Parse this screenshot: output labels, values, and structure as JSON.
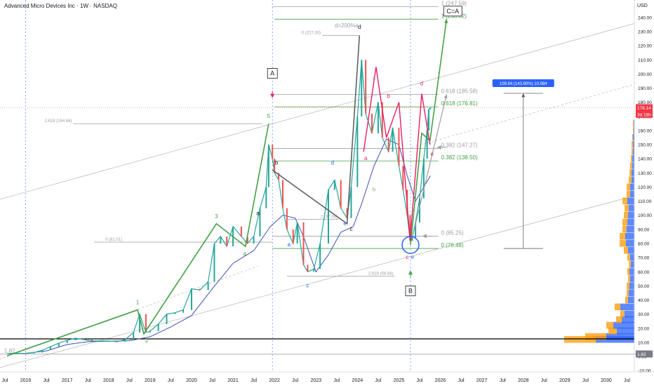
{
  "header": {
    "title": "Advanced Micro Devices Inc · 1W · NASDAQ",
    "currency": "USD"
  },
  "chart_data": {
    "type": "line",
    "title": "Advanced Micro Devices Inc · 1W · NASDAQ",
    "ylim": [
      -10,
      250
    ],
    "y_scale": "linear",
    "grid": false,
    "y_ticks": [
      -10,
      0,
      10,
      20,
      30,
      40,
      50,
      60,
      70,
      80,
      90,
      100,
      110,
      120,
      130,
      140,
      150,
      160,
      170,
      180,
      190,
      200,
      210,
      220,
      230,
      240
    ],
    "y_tick_labels": [
      "-10.00",
      "0.00",
      "10.00",
      "20.00",
      "30.00",
      "40.00",
      "50.00",
      "60.00",
      "70.00",
      "80.00",
      "90.00",
      "100.00",
      "110.00",
      "120.00",
      "130.00",
      "140.00",
      "150.00",
      "160.00",
      "170.00",
      "180.00",
      "190.00",
      "200.00",
      "210.00",
      "220.00",
      "230.00",
      "240.00"
    ],
    "x_ticks": [
      {
        "t": 2015.5,
        "label": "Jul"
      },
      {
        "t": 2016,
        "label": "2016"
      },
      {
        "t": 2016.5,
        "label": "Jul"
      },
      {
        "t": 2017,
        "label": "2017"
      },
      {
        "t": 2017.5,
        "label": "Jul"
      },
      {
        "t": 2018,
        "label": "2018"
      },
      {
        "t": 2018.5,
        "label": "Jul"
      },
      {
        "t": 2019,
        "label": "2019"
      },
      {
        "t": 2019.5,
        "label": "Jul"
      },
      {
        "t": 2020,
        "label": "2020"
      },
      {
        "t": 2020.5,
        "label": "Jul"
      },
      {
        "t": 2021,
        "label": "2021"
      },
      {
        "t": 2021.5,
        "label": "Jul"
      },
      {
        "t": 2022,
        "label": "2022"
      },
      {
        "t": 2022.5,
        "label": "Jul"
      },
      {
        "t": 2023,
        "label": "2023"
      },
      {
        "t": 2023.5,
        "label": "Jul"
      },
      {
        "t": 2024,
        "label": "2024"
      },
      {
        "t": 2024.5,
        "label": "Jul"
      },
      {
        "t": 2025,
        "label": "2025"
      },
      {
        "t": 2025.5,
        "label": "Jul"
      },
      {
        "t": 2026,
        "label": "2026"
      },
      {
        "t": 2026.5,
        "label": "Jul"
      },
      {
        "t": 2027,
        "label": "2027"
      },
      {
        "t": 2027.5,
        "label": "Jul"
      },
      {
        "t": 2028,
        "label": "2028"
      },
      {
        "t": 2028.5,
        "label": "Jul"
      },
      {
        "t": 2029,
        "label": "2029"
      },
      {
        "t": 2029.5,
        "label": "Jul"
      },
      {
        "t": 2030,
        "label": "2030"
      },
      {
        "t": 2030.5,
        "label": "Jul"
      }
    ],
    "price_series": {
      "t": [
        2015.55,
        2015.8,
        2016.0,
        2016.2,
        2016.4,
        2016.6,
        2016.8,
        2017.0,
        2017.2,
        2017.4,
        2017.6,
        2017.8,
        2018.0,
        2018.2,
        2018.4,
        2018.6,
        2018.75,
        2018.9,
        2019.0,
        2019.2,
        2019.4,
        2019.6,
        2019.8,
        2020.0,
        2020.2,
        2020.4,
        2020.55,
        2020.7,
        2020.85,
        2021.0,
        2021.2,
        2021.35,
        2021.5,
        2021.65,
        2021.8,
        2021.86,
        2021.95,
        2022.0,
        2022.1,
        2022.2,
        2022.3,
        2022.45,
        2022.55,
        2022.7,
        2022.8,
        2022.95,
        2023.1,
        2023.3,
        2023.45,
        2023.6,
        2023.75,
        2023.85,
        2024.0,
        2024.1,
        2024.2,
        2024.35,
        2024.5,
        2024.6,
        2024.75,
        2024.85,
        2025.0,
        2025.1,
        2025.2,
        2025.27,
        2025.32,
        2025.4,
        2025.5,
        2025.6,
        2025.68,
        2025.72,
        2025.76
      ],
      "close": [
        2.0,
        2.3,
        2.2,
        2.8,
        4.5,
        7.0,
        9.5,
        11.5,
        13.0,
        12.0,
        11.0,
        11.0,
        11.0,
        10.5,
        12.0,
        17.0,
        30.0,
        17.0,
        18.0,
        23.0,
        30.0,
        31.0,
        33.0,
        48.0,
        47.0,
        53.0,
        80.0,
        85.0,
        78.0,
        92.0,
        85.0,
        80.0,
        85.0,
        105.0,
        120.0,
        150.0,
        140.0,
        130.0,
        125.0,
        105.0,
        90.0,
        80.0,
        95.0,
        65.0,
        60.0,
        62.0,
        80.0,
        118.0,
        125.0,
        105.0,
        98.0,
        120.0,
        170.0,
        210.0,
        172.0,
        158.0,
        180.0,
        155.0,
        145.0,
        162.0,
        135.0,
        118.0,
        100.0,
        82.0,
        84.0,
        95.0,
        112.0,
        140.0,
        160.0,
        175.0,
        176.14
      ]
    },
    "moving_average": {
      "t": [
        2015.55,
        2016.0,
        2016.5,
        2017.0,
        2017.5,
        2018.0,
        2018.5,
        2019.0,
        2019.5,
        2020.0,
        2020.5,
        2021.0,
        2021.5,
        2021.9,
        2022.2,
        2022.5,
        2022.7,
        2023.0,
        2023.3,
        2023.6,
        2023.9,
        2024.1,
        2024.4,
        2024.7,
        2025.0,
        2025.2,
        2025.4,
        2025.6,
        2025.76
      ],
      "value": [
        2.0,
        2.3,
        4.0,
        8.5,
        10.5,
        10.8,
        11.2,
        14.0,
        21.0,
        29.0,
        48.0,
        66.0,
        75.0,
        92.0,
        100.0,
        98.0,
        85.0,
        60.0,
        72.0,
        88.0,
        92.0,
        108.0,
        135.0,
        154.0,
        150.0,
        128.0,
        110.0,
        120.0,
        128.0
      ]
    },
    "elliott_wave_main": {
      "t": [
        2015.55,
        2018.7,
        2018.85,
        2020.6,
        2021.3,
        2021.86
      ],
      "price": [
        0.5,
        33.0,
        16.0,
        94.0,
        78.0,
        164.84
      ]
    },
    "wave_b_to_c": {
      "t": [
        2025.28,
        2025.55,
        2025.75,
        2026.15
      ],
      "price": [
        79.0,
        158.0,
        153.0,
        238.82
      ]
    },
    "projection_path": {
      "t": [
        2025.32,
        2026.15
      ],
      "price": [
        84.0,
        185.58
      ]
    },
    "gray_abc_path": {
      "t": [
        2021.95,
        2023.75,
        2024.05
      ],
      "price": [
        132.0,
        94.0,
        227.3
      ]
    },
    "red_harmonic_path": {
      "t": [
        2024.15,
        2024.45,
        2024.7,
        2025.0,
        2025.27,
        2025.55,
        2025.75
      ],
      "price": [
        145.0,
        205.0,
        155.0,
        180.0,
        82.0,
        186.0,
        150.0
      ]
    },
    "channel_lines": [
      {
        "style": "solid",
        "t": [
          2014.6,
          2031.2
        ],
        "price": [
          -14.0,
          118.0
        ]
      },
      {
        "style": "solid",
        "t": [
          2014.6,
          2031.2
        ],
        "price": [
          105.0,
          240.0
        ]
      },
      {
        "style": "dashed",
        "t": [
          2014.6,
          2021.6
        ],
        "price": [
          -10.0,
          64.0
        ]
      },
      {
        "style": "dashed",
        "t": [
          2025.3,
          2031.2
        ],
        "price": [
          148.0,
          197.0
        ]
      }
    ],
    "horizontal_levels": [
      {
        "price": 247.59,
        "label": "1 (247.59)",
        "color": "#9e9e9e",
        "from": 2021.95,
        "to": 2025.95
      },
      {
        "price": 238.82,
        "label": "1 (238.82)",
        "color": "#43a047",
        "from": 2022.0,
        "to": 2025.95
      },
      {
        "price": 227.3,
        "label": "0 (227.30)",
        "color": "#9e9e9e",
        "from": 2023.15,
        "to": 2024.05
      },
      {
        "price": 185.58,
        "label": "0.618 (185.58)",
        "color": "#9e9e9e",
        "from": 2022.0,
        "to": 2025.95
      },
      {
        "price": 176.81,
        "label": "0.618 (176.81)",
        "color": "#43a047",
        "from": 2022.0,
        "to": 2025.95
      },
      {
        "price": 164.84,
        "label": "2.618 (164.84)",
        "color": "#9e9e9e",
        "from": 2017.15,
        "to": 2021.7
      },
      {
        "price": 147.27,
        "label": "0.382 (147.27)",
        "color": "#9e9e9e",
        "from": 2021.95,
        "to": 2025.95
      },
      {
        "price": 138.5,
        "label": "0.382 (138.50)",
        "color": "#43a047",
        "from": 2021.95,
        "to": 2025.95
      },
      {
        "price": 97.08,
        "label": "2 (97.08)",
        "color": "#9e9e9e",
        "from": 2022.3,
        "to": 2023.55
      },
      {
        "price": 85.25,
        "label": "0 (85.25)",
        "color": "#9e9e9e",
        "from": 2021.95,
        "to": 2025.95
      },
      {
        "price": 81.01,
        "label": "0 (81.01)",
        "color": "#9e9e9e",
        "from": 2017.65,
        "to": 2021.95
      },
      {
        "price": 76.48,
        "label": "0 (76.48)",
        "color": "#43a047",
        "from": 2021.95,
        "to": 2025.95
      },
      {
        "price": 56.84,
        "label": "2.618 (56.84)",
        "color": "#9e9e9e",
        "from": 2022.3,
        "to": 2024.9
      },
      {
        "price": 1.82,
        "label": "1.82",
        "color": "#9e9e9e",
        "from": 2014.6,
        "to": 2031.2
      }
    ],
    "support_line": {
      "price": 12.5,
      "color": "#000000"
    },
    "measure": {
      "label": "109.84 (143.60%) 10,984",
      "t": 2028.0,
      "from_price": 76.48,
      "to_price": 186.3,
      "color": "#2962ff"
    },
    "d_label": {
      "text": "d=200%a",
      "t": 2023.45,
      "price": 233.0
    },
    "annotations": [
      {
        "text": "1",
        "t": 2018.7,
        "price": 37.0,
        "color": "#43a047"
      },
      {
        "text": "2",
        "t": 2018.92,
        "price": 10.0,
        "color": "#43a047"
      },
      {
        "text": "3",
        "t": 2020.6,
        "price": 98.0,
        "color": "#43a047"
      },
      {
        "text": "4",
        "t": 2021.28,
        "price": 71.0,
        "color": "#43a047"
      },
      {
        "text": "5",
        "t": 2021.86,
        "price": 169.0,
        "color": "#43a047"
      },
      {
        "text": "a",
        "t": 2021.6,
        "price": 100.0,
        "color": "#131722"
      },
      {
        "text": "b",
        "t": 2022.05,
        "price": 136.0,
        "color": "#131722"
      },
      {
        "text": "c",
        "t": 2023.85,
        "price": 89.0,
        "color": "#131722"
      },
      {
        "text": "d",
        "t": 2024.05,
        "price": 232.0,
        "color": "#131722"
      },
      {
        "text": "a",
        "t": 2022.35,
        "price": 78.0,
        "color": "#2962ff"
      },
      {
        "text": "c",
        "t": 2022.8,
        "price": 49.0,
        "color": "#2962ff"
      },
      {
        "text": "d",
        "t": 2023.4,
        "price": 136.0,
        "color": "#2962ff"
      },
      {
        "text": "e",
        "t": 2023.7,
        "price": 93.0,
        "color": "#2962ff"
      },
      {
        "text": "a",
        "t": 2024.4,
        "price": 196.0,
        "color": "#9e9e9e"
      },
      {
        "text": "b",
        "t": 2024.4,
        "price": 117.0,
        "color": "#9e9e9e"
      },
      {
        "text": "b",
        "t": 2024.75,
        "price": 183.0,
        "color": "#e91e63"
      },
      {
        "text": "a",
        "t": 2024.2,
        "price": 139.0,
        "color": "#e91e63"
      },
      {
        "text": "c",
        "t": 2025.2,
        "price": 69.0,
        "color": "#e91e63"
      },
      {
        "text": "e",
        "t": 2025.33,
        "price": 69.0,
        "color": "#2962ff"
      },
      {
        "text": "d",
        "t": 2025.55,
        "price": 192.0,
        "color": "#e91e63"
      },
      {
        "text": "e",
        "t": 2025.8,
        "price": 142.0,
        "color": "#e91e63"
      }
    ],
    "boxed_labels": [
      {
        "text": "A",
        "t": 2021.95,
        "price": 199.0
      },
      {
        "text": "B",
        "t": 2025.28,
        "price": 45.0
      },
      {
        "text": "C=A",
        "t": 2026.3,
        "price": 243.0
      }
    ],
    "arrows": [
      {
        "t": 2021.95,
        "price": 184.0,
        "dir": "down",
        "color": "#e91e63"
      },
      {
        "t": 2025.28,
        "price": 60.0,
        "dir": "up",
        "color": "#43a047"
      },
      {
        "t": 2025.95,
        "price": 148.0,
        "dir": "left",
        "color": "#9e9e9e"
      },
      {
        "t": 2025.6,
        "price": 85.25,
        "dir": "left",
        "color": "#9e9e9e"
      }
    ],
    "circle": {
      "t": 2025.28,
      "price": 79.0,
      "color": "#2962ff"
    },
    "vertical_dotted_lines": [
      2016.0,
      2021.95,
      2025.28
    ],
    "price_labels": [
      {
        "price": 176.14,
        "text": "176.14",
        "color": "#f23645"
      },
      {
        "price": 171.5,
        "text": "3d 18h",
        "color": "#f23645"
      },
      {
        "price": 1.82,
        "text": "1.82",
        "color": "#787b86"
      }
    ],
    "current_price_line": {
      "price": 176.14,
      "color": "#f23645"
    },
    "volume_profile": [
      {
        "price": 12,
        "down": 55,
        "up": 45
      },
      {
        "price": 14,
        "down": 40,
        "up": 30
      },
      {
        "price": 18,
        "down": 25,
        "up": 12
      },
      {
        "price": 22,
        "down": 30,
        "up": 10
      },
      {
        "price": 26,
        "down": 18,
        "up": 8
      },
      {
        "price": 30,
        "down": 14,
        "up": 6
      },
      {
        "price": 35,
        "down": 20,
        "up": 8
      },
      {
        "price": 40,
        "down": 9,
        "up": 4
      },
      {
        "price": 45,
        "down": 8,
        "up": 3
      },
      {
        "price": 50,
        "down": 7,
        "up": 4
      },
      {
        "price": 55,
        "down": 6,
        "up": 3
      },
      {
        "price": 60,
        "down": 7,
        "up": 3
      },
      {
        "price": 65,
        "down": 5,
        "up": 3
      },
      {
        "price": 70,
        "down": 6,
        "up": 4
      },
      {
        "price": 75,
        "down": 9,
        "up": 6
      },
      {
        "price": 80,
        "down": 12,
        "up": 9
      },
      {
        "price": 85,
        "down": 13,
        "up": 8
      },
      {
        "price": 90,
        "down": 11,
        "up": 6
      },
      {
        "price": 95,
        "down": 10,
        "up": 7
      },
      {
        "price": 100,
        "down": 9,
        "up": 6
      },
      {
        "price": 105,
        "down": 8,
        "up": 6
      },
      {
        "price": 110,
        "down": 10,
        "up": 7
      },
      {
        "price": 115,
        "down": 6,
        "up": 5
      },
      {
        "price": 120,
        "down": 6,
        "up": 5
      },
      {
        "price": 125,
        "down": 4,
        "up": 4
      },
      {
        "price": 130,
        "down": 4,
        "up": 3
      },
      {
        "price": 135,
        "down": 3,
        "up": 3
      },
      {
        "price": 140,
        "down": 3,
        "up": 2
      },
      {
        "price": 145,
        "down": 2,
        "up": 2
      },
      {
        "price": 150,
        "down": 2,
        "up": 2
      },
      {
        "price": 155,
        "down": 2,
        "up": 1
      },
      {
        "price": 160,
        "down": 1,
        "up": 1
      },
      {
        "price": 165,
        "down": 1,
        "up": 1
      }
    ]
  }
}
